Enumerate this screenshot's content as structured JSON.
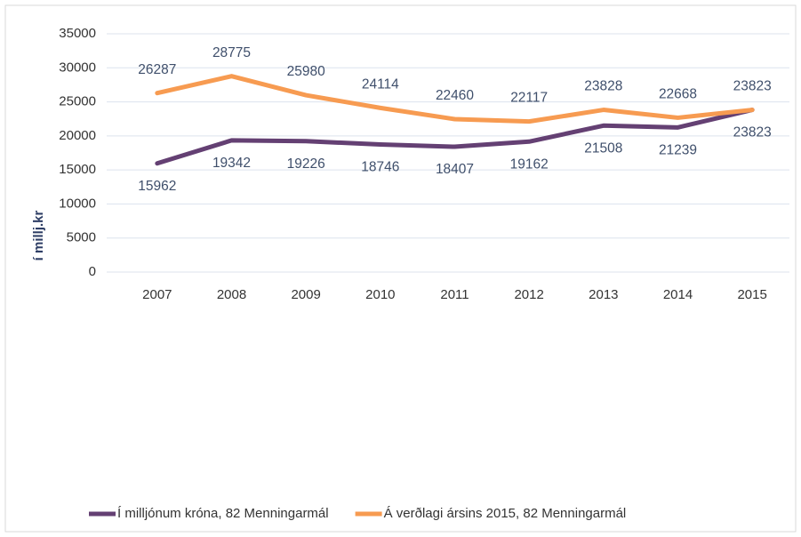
{
  "chart_data": {
    "type": "line",
    "y_label": "í millj.kr",
    "categories": [
      "2007",
      "2008",
      "2009",
      "2010",
      "2011",
      "2012",
      "2013",
      "2014",
      "2015"
    ],
    "series": [
      {
        "name": "Í milljónum króna, 82 Menningarmál",
        "color": "#644073",
        "values": [
          15962,
          19342,
          19226,
          18746,
          18407,
          19162,
          21508,
          21239,
          23823
        ]
      },
      {
        "name": "Á verðlagi ársins 2015, 82 Menningarmál",
        "color": "#f79b51",
        "values": [
          26287,
          28775,
          25980,
          24114,
          22460,
          22117,
          23828,
          22668,
          23823
        ]
      }
    ],
    "ylim": [
      0,
      35000
    ],
    "yticks": [
      0,
      5000,
      10000,
      15000,
      20000,
      25000,
      30000,
      35000
    ],
    "grid": true,
    "legend": "bottom"
  }
}
